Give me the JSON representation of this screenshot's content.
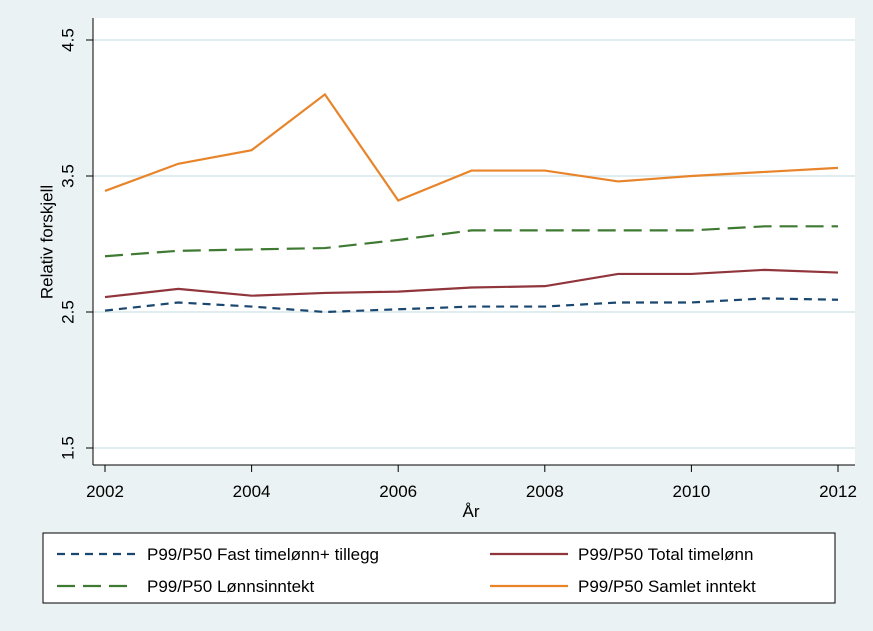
{
  "chart_data": {
    "type": "line",
    "x_label": "År",
    "y_label": "Relativ forskjell",
    "x": [
      2002,
      2003,
      2004,
      2005,
      2006,
      2007,
      2008,
      2009,
      2010,
      2011,
      2012
    ],
    "xlim": [
      2002,
      2012
    ],
    "xticks": [
      2002,
      2004,
      2006,
      2008,
      2010,
      2012
    ],
    "ylim": [
      1.5,
      4.5
    ],
    "yticks": [
      1.5,
      2.5,
      3.5,
      4.5
    ],
    "grid": true,
    "series": [
      {
        "name": "P99/P50 Fast timelønn+ tillegg",
        "color": "#1a476f",
        "line_style": "dash",
        "values": [
          2.51,
          2.57,
          2.54,
          2.5,
          2.52,
          2.54,
          2.54,
          2.57,
          2.57,
          2.6,
          2.59
        ]
      },
      {
        "name": "P99/P50 Total timelønn",
        "color": "#90353b",
        "line_style": "solid",
        "values": [
          2.61,
          2.67,
          2.62,
          2.64,
          2.65,
          2.68,
          2.69,
          2.78,
          2.78,
          2.81,
          2.79
        ]
      },
      {
        "name": "P99/P50 Lønnsinntekt",
        "color": "#3f7a32",
        "line_style": "longdash",
        "values": [
          2.91,
          2.95,
          2.96,
          2.97,
          3.03,
          3.1,
          3.1,
          3.1,
          3.1,
          3.13,
          3.13
        ]
      },
      {
        "name": "P99/P50 Samlet inntekt",
        "color": "#e8842a",
        "line_style": "solid",
        "values": [
          3.39,
          3.59,
          3.69,
          4.1,
          3.32,
          3.54,
          3.54,
          3.46,
          3.5,
          3.53,
          3.56
        ]
      }
    ]
  }
}
